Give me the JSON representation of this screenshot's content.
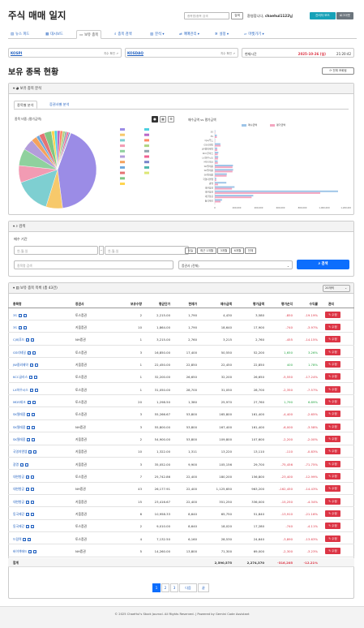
{
  "header": {
    "title": "주식 매매 일지",
    "search_placeholder": "종목명/종목 검색",
    "search_button": "검색",
    "welcome_prefix": "환영합니다,",
    "welcome_user": "chaehui1122님",
    "admin_button": "관리자 모드",
    "logout_button": "로그아웃"
  },
  "nav": {
    "tabs": [
      {
        "label": "뉴스 피드",
        "icon": "newspaper-icon",
        "glyph": "▤",
        "active": false
      },
      {
        "label": "대시보드",
        "icon": "grid-icon",
        "glyph": "▦",
        "active": false
      },
      {
        "label": "보유 종목",
        "icon": "wallet-icon",
        "glyph": "▭",
        "active": true
      },
      {
        "label": "종목 검색",
        "icon": "search-icon",
        "glyph": "⌕",
        "active": false
      },
      {
        "label": "분석 ▾",
        "icon": "chart-icon",
        "glyph": "▥",
        "active": false
      },
      {
        "label": "매매관리 ▾",
        "icon": "trade-icon",
        "glyph": "⇄",
        "active": false
      },
      {
        "label": "설정 ▾",
        "icon": "gear-icon",
        "glyph": "✲",
        "active": false
      },
      {
        "label": "마켓가기 ▾",
        "icon": "market-icon",
        "glyph": "▱",
        "active": false
      }
    ]
  },
  "indices": [
    {
      "name": "KOSPI",
      "right": "지수 확인"
    },
    {
      "name": "KOSDAQ",
      "right": "지수 확인"
    }
  ],
  "clock": {
    "label": "현재시간",
    "date": "2025-10-26 (일)",
    "time": "21:20:42"
  },
  "page_title": "보유 종목 현황",
  "all_button": "전체 조회됨",
  "analysis_card": {
    "title": "보유 종목 분석",
    "tabs": [
      "종목별 분석",
      "증권사별 분석"
    ],
    "pie_title": "종목 비중 (평가금액)",
    "bar_title": "매수금액 vs 평가금액",
    "bar_legend": [
      "매수금액",
      "평가금액"
    ]
  },
  "filter_card": {
    "title": "검색",
    "period_label": "매수 기간",
    "start_placeholder": "연-월-일",
    "end_placeholder": "연-월-일",
    "quick": [
      "오늘",
      "최근 1개월",
      "3개월",
      "6개월",
      "전체"
    ],
    "name_placeholder": "종목명 검색",
    "broker_placeholder": "증권사 (전체)",
    "search_button": "검색"
  },
  "holdings": {
    "title": "보유 종목 목록 (총 43건)",
    "per_page": "20개씩",
    "columns": [
      "종목명",
      "증권사",
      "보유수량",
      "평균단가",
      "현재가",
      "매수금액",
      "평가금액",
      "평가손익",
      "수익률",
      "관리"
    ],
    "rows": [
      {
        "name": "3S",
        "broker": "토스증권",
        "qty": "2",
        "avg": "2,215.00",
        "cur": "1,790",
        "buy": "4,430",
        "eval": "3,580",
        "pl": "-850",
        "rate": "-19.19%",
        "up": false
      },
      {
        "name": "3S",
        "broker": "키움증권",
        "qty": "10",
        "avg": "1,864.00",
        "cur": "1,790",
        "buy": "18,640",
        "eval": "17,900",
        "pl": "-740",
        "rate": "-3.97%",
        "up": false
      },
      {
        "name": "CJ씨푸드",
        "broker": "NH증권",
        "qty": "1",
        "avg": "3,215.00",
        "cur": "2,760",
        "buy": "3,215",
        "eval": "2,760",
        "pl": "-455",
        "rate": "-14.15%",
        "up": false
      },
      {
        "name": "GS리테일",
        "broker": "토스증권",
        "qty": "3",
        "avg": "16,850.00",
        "cur": "17,400",
        "buy": "50,550",
        "eval": "52,200",
        "pl": "1,650",
        "rate": "3.26%",
        "up": true
      },
      {
        "name": "JW중외제약",
        "broker": "키움증권",
        "qty": "1",
        "avg": "22,450.00",
        "cur": "22,850",
        "buy": "22,450",
        "eval": "22,850",
        "pl": "400",
        "rate": "1.78%",
        "up": true
      },
      {
        "name": "KCC글라스",
        "broker": "토스증권",
        "qty": "1",
        "avg": "32,200.00",
        "cur": "26,650",
        "buy": "32,200",
        "eval": "26,650",
        "pl": "-5,550",
        "rate": "-17.24%",
        "up": false
      },
      {
        "name": "LX하우시스",
        "broker": "토스증권",
        "qty": "1",
        "avg": "31,050.00",
        "cur": "28,700",
        "buy": "31,050",
        "eval": "28,700",
        "pl": "-2,350",
        "rate": "-7.57%",
        "up": false
      },
      {
        "name": "MDS테크",
        "broker": "토스증권",
        "qty": "20",
        "avg": "1,298.50",
        "cur": "1,380",
        "buy": "25,970",
        "eval": "27,760",
        "pl": "1,790",
        "rate": "6.89%",
        "up": true
      },
      {
        "name": "SK텔레콤",
        "broker": "토스증권",
        "qty": "3",
        "avg": "55,266.67",
        "cur": "53,800",
        "buy": "165,800",
        "eval": "161,400",
        "pl": "-4,400",
        "rate": "-2.65%",
        "up": false
      },
      {
        "name": "SK텔레콤",
        "broker": "NH증권",
        "qty": "3",
        "avg": "55,800.00",
        "cur": "53,800",
        "buy": "167,400",
        "eval": "161,400",
        "pl": "-6,000",
        "rate": "-3.58%",
        "up": false
      },
      {
        "name": "SK텔레콤",
        "broker": "키움증권",
        "qty": "2",
        "avg": "54,900.00",
        "cur": "53,800",
        "buy": "109,800",
        "eval": "107,600",
        "pl": "-2,200",
        "rate": "-2.00%",
        "up": false
      },
      {
        "name": "국영지앤엠",
        "broker": "키움증권",
        "qty": "10",
        "avg": "1,322.00",
        "cur": "1,311",
        "buy": "13,220",
        "eval": "13,110",
        "pl": "-110",
        "rate": "-0.83%",
        "up": false
      },
      {
        "name": "광명",
        "broker": "키움증권",
        "qty": "3",
        "avg": "35,052.00",
        "cur": "9,900",
        "buy": "105,156",
        "eval": "29,700",
        "pl": "-75,456",
        "rate": "-71.75%",
        "up": false
      },
      {
        "name": "대한항공",
        "broker": "토스증권",
        "qty": "7",
        "avg": "25,742.86",
        "cur": "22,400",
        "buy": "180,200",
        "eval": "156,800",
        "pl": "-23,400",
        "rate": "-12.99%",
        "up": false
      },
      {
        "name": "대한항공",
        "broker": "NH증권",
        "qty": "43",
        "avg": "26,177.91",
        "cur": "22,400",
        "buy": "1,125,650",
        "eval": "963,200",
        "pl": "-162,450",
        "rate": "-14.43%",
        "up": false
      },
      {
        "name": "대한항공",
        "broker": "키움증권",
        "qty": "15",
        "avg": "23,416.67",
        "cur": "22,400",
        "buy": "351,250",
        "eval": "336,000",
        "pl": "-15,250",
        "rate": "-4.34%",
        "up": false
      },
      {
        "name": "동국제강",
        "broker": "키움증권",
        "qty": "6",
        "avg": "10,958.33",
        "cur": "8,640",
        "buy": "65,750",
        "eval": "51,840",
        "pl": "-13,910",
        "rate": "-21.16%",
        "up": false
      },
      {
        "name": "동국제강",
        "broker": "토스증권",
        "qty": "2",
        "avg": "9,010.00",
        "cur": "8,640",
        "buy": "18,020",
        "eval": "17,280",
        "pl": "-740",
        "rate": "-4.11%",
        "up": false
      },
      {
        "name": "드림텍",
        "broker": "토스증권",
        "qty": "4",
        "avg": "7,132.50",
        "cur": "6,160",
        "buy": "28,530",
        "eval": "24,640",
        "pl": "-3,890",
        "rate": "-13.63%",
        "up": false
      },
      {
        "name": "바이액에드",
        "broker": "NH증권",
        "qty": "5",
        "avg": "14,260.00",
        "cur": "13,800",
        "buy": "71,300",
        "eval": "69,000",
        "pl": "-2,300",
        "rate": "-3.23%",
        "up": false
      }
    ],
    "total": {
      "label": "합계",
      "buy": "2,590,575",
      "eval": "2,274,370",
      "pl": "-316,205",
      "rate": "-12.21%"
    },
    "edit_label": "수정"
  },
  "pagination": [
    "1",
    "2",
    "3",
    "다음",
    "끝"
  ],
  "footer": "© 2025 ChaeHui's Stock Journal. All Rights Reserved. | Powered by Gemini Code Assistant",
  "colors": {
    "accent": "#0d6efd",
    "link": "#1f5fbf",
    "danger": "#dc3545",
    "up": "#28a745",
    "buy_bar": "#9ec5e8",
    "eval_bar": "#f4a6c0"
  },
  "chart_data": [
    {
      "type": "pie",
      "title": "종목 비중 (평가금액)",
      "values": [
        963200,
        156800,
        336000,
        161400,
        161400,
        107600,
        52200,
        29700,
        51840,
        69000,
        28700,
        26650,
        27760,
        24640,
        22850,
        17900,
        17280,
        13110,
        3580,
        2760
      ],
      "colors": [
        "#9b8ce6",
        "#f7c96b",
        "#7ecfd1",
        "#f29bb3",
        "#8fd19e",
        "#b39ddb",
        "#f5a25d",
        "#6fa8dc",
        "#e57373",
        "#81c784",
        "#ffd54f",
        "#4dd0e1",
        "#ba68c8",
        "#ff8a65",
        "#aed581",
        "#90a4ae",
        "#f06292",
        "#7986cb",
        "#4db6ac",
        "#dce775"
      ]
    },
    {
      "type": "bar",
      "title": "매수금액 vs 평가금액",
      "orientation": "horizontal",
      "categories": [
        "3S",
        "3S",
        "CJ씨푸드",
        "GS리테일",
        "JW중외제약",
        "KCC글라스",
        "LX하우시스",
        "MDS테크",
        "SK텔레콤",
        "SK텔레콤",
        "SK텔레콤",
        "국영지앤엠",
        "광명",
        "대한항공",
        "대한항공",
        "대한항공",
        "동국제강"
      ],
      "series": [
        {
          "name": "매수금액",
          "values": [
            4430,
            18640,
            3215,
            50550,
            22450,
            32200,
            31050,
            25970,
            165800,
            167400,
            109800,
            13220,
            105156,
            180200,
            1125650,
            351250,
            65750
          ]
        },
        {
          "name": "평가금액",
          "values": [
            3580,
            17900,
            2760,
            52200,
            22850,
            26650,
            28700,
            27760,
            161400,
            161400,
            107600,
            13110,
            29700,
            156800,
            963200,
            336000,
            51840
          ]
        }
      ],
      "xlim": [
        0,
        1200000
      ],
      "xticks": [
        "0",
        "200,000",
        "400,000",
        "600,000",
        "800,000",
        "1,000,000",
        "1,200,000"
      ]
    }
  ]
}
